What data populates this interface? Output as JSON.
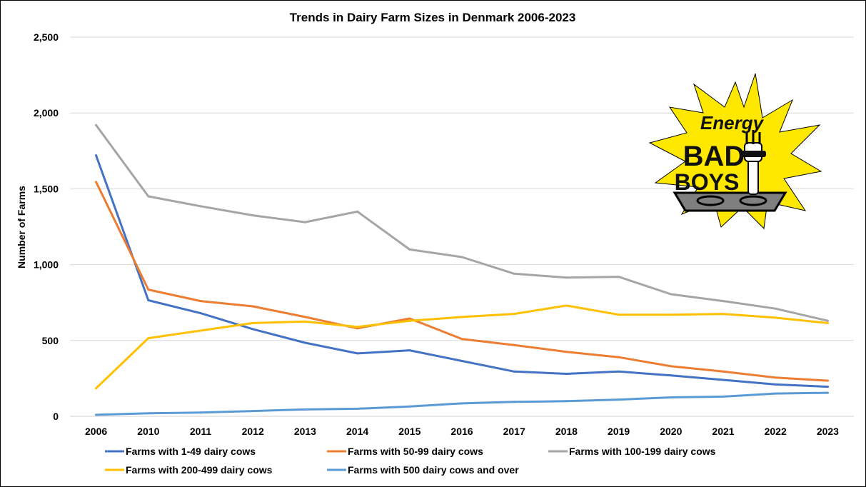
{
  "chart_data": {
    "type": "line",
    "title": "Trends in Dairy Farm Sizes in Denmark 2006-2023",
    "xlabel": "",
    "ylabel": "Number of Farms",
    "ylim": [
      0,
      2500
    ],
    "y_ticks": [
      "0",
      "500",
      "1,000",
      "1,500",
      "2,000",
      "2,500"
    ],
    "y_tick_values": [
      0,
      500,
      1000,
      1500,
      2000,
      2500
    ],
    "grid": true,
    "legend_position": "bottom",
    "categories": [
      "2006",
      "2010",
      "2011",
      "2012",
      "2013",
      "2014",
      "2015",
      "2016",
      "2017",
      "2018",
      "2019",
      "2020",
      "2021",
      "2022",
      "2023"
    ],
    "series": [
      {
        "name": "Farms with 1-49 dairy cows",
        "color": "#4472C4",
        "values": [
          1720,
          765,
          680,
          575,
          485,
          415,
          435,
          365,
          295,
          280,
          295,
          270,
          240,
          210,
          195
        ]
      },
      {
        "name": "Farms with 50-99 dairy cows",
        "color": "#ED7D31",
        "values": [
          1545,
          835,
          760,
          725,
          655,
          580,
          645,
          510,
          470,
          425,
          390,
          330,
          295,
          255,
          235
        ]
      },
      {
        "name": "Farms with 100-199 dairy cows",
        "color": "#A5A5A5",
        "values": [
          1920,
          1450,
          1385,
          1325,
          1280,
          1350,
          1100,
          1050,
          940,
          915,
          920,
          805,
          760,
          710,
          630
        ]
      },
      {
        "name": "Farms with 200-499 dairy cows",
        "color": "#FFC000",
        "values": [
          185,
          515,
          565,
          615,
          625,
          590,
          630,
          655,
          675,
          730,
          670,
          670,
          675,
          650,
          615
        ]
      },
      {
        "name": "Farms with 500 dairy cows and over",
        "color": "#5B9BD5",
        "values": [
          10,
          20,
          25,
          35,
          45,
          50,
          65,
          85,
          95,
          100,
          110,
          125,
          130,
          150,
          155
        ]
      }
    ]
  },
  "logo": {
    "line1": "Energy",
    "line2": "BAD",
    "line3": "BOYS",
    "star_color": "#FFE800",
    "outline_color": "#000000"
  }
}
